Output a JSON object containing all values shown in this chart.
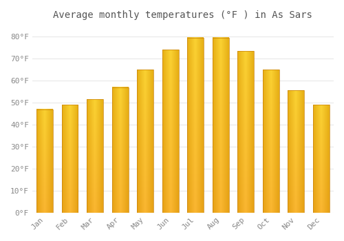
{
  "title": "Average monthly temperatures (°F ) in As Sars",
  "months": [
    "Jan",
    "Feb",
    "Mar",
    "Apr",
    "May",
    "Jun",
    "Jul",
    "Aug",
    "Sep",
    "Oct",
    "Nov",
    "Dec"
  ],
  "values": [
    47,
    49,
    51.5,
    57,
    65,
    74,
    79.5,
    79.5,
    73.5,
    65,
    55.5,
    49
  ],
  "bar_color_main": "#FFBF00",
  "bar_color_edge": "#E8950A",
  "bar_color_highlight": "#FFD966",
  "background_color": "#FFFFFF",
  "grid_color": "#E8E8E8",
  "yticks": [
    0,
    10,
    20,
    30,
    40,
    50,
    60,
    70,
    80
  ],
  "ylim": [
    0,
    85
  ],
  "title_fontsize": 10,
  "tick_fontsize": 8,
  "tick_color": "#888888",
  "font_family": "monospace"
}
